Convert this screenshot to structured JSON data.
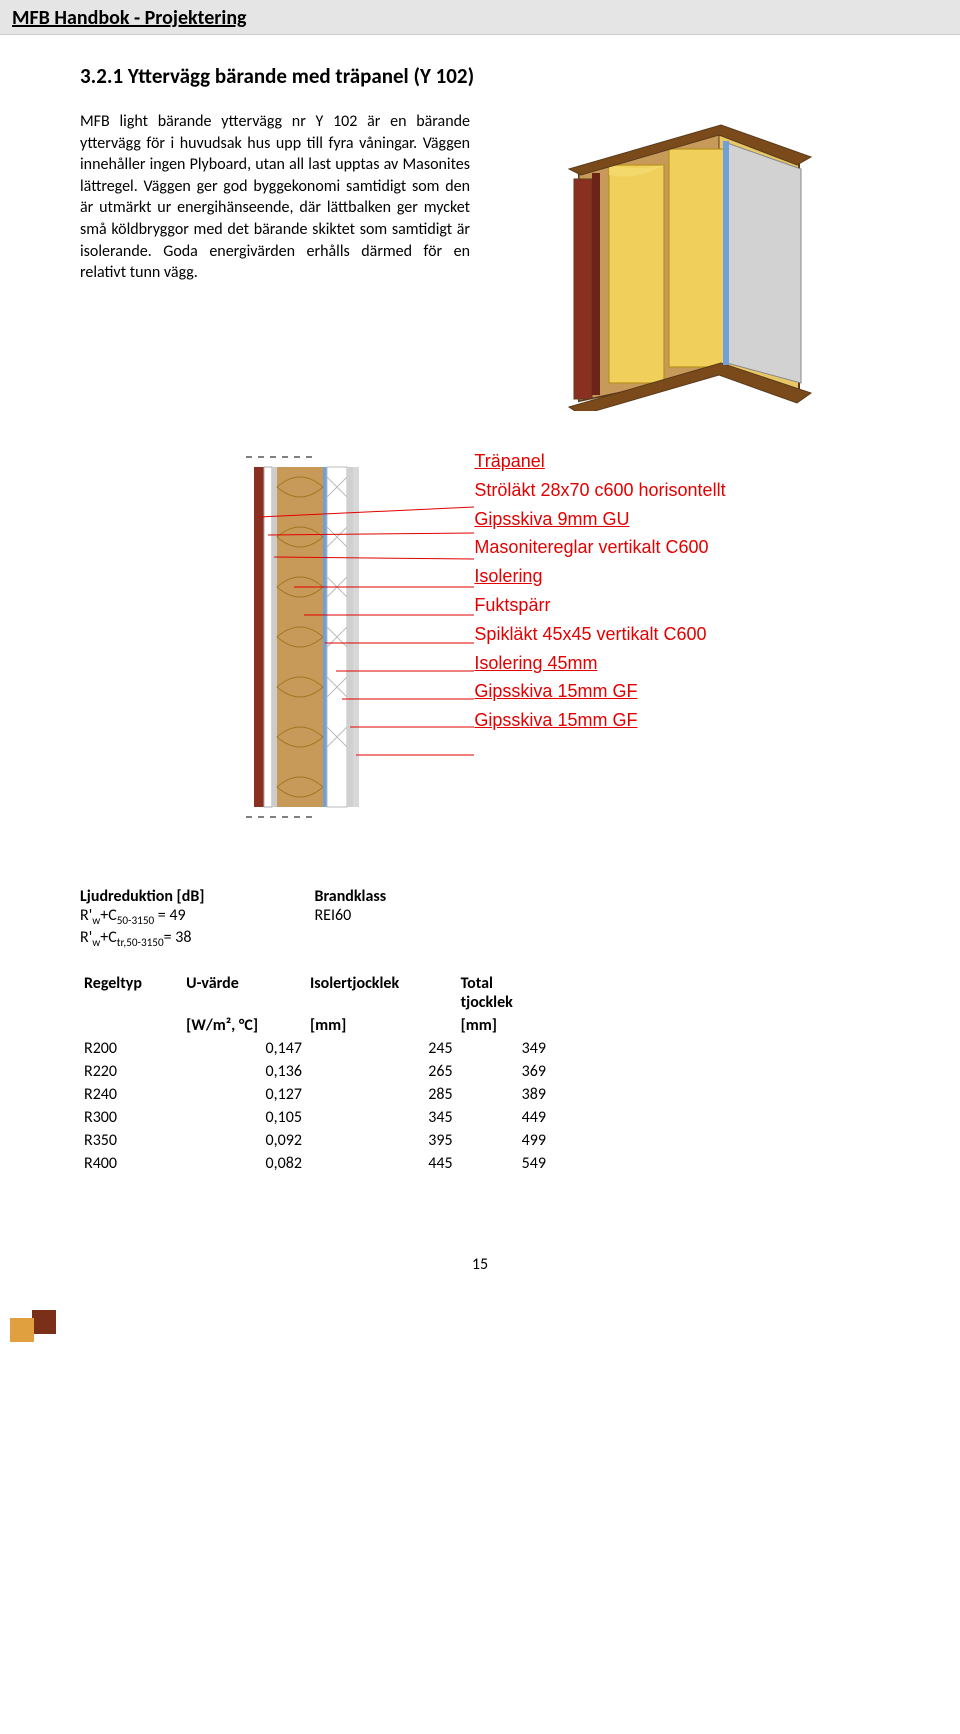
{
  "header": {
    "title": "MFB Handbok - Projektering"
  },
  "section": {
    "number": "3.2.1",
    "title": "Yttervägg bärande med träpanel (Y 102)"
  },
  "body_text": "MFB light bärande yttervägg nr Y 102 är en bärande yttervägg för i huvudsak hus upp till fyra våningar. Väggen innehåller ingen Plyboard, utan all last upptas av Masonites lättregel. Väggen ger god byggekonomi samtidigt som den är utmärkt ur energihänseende, där lättbalken ger mycket små köldbryggor med det bärande skiktet som samtidigt är isolerande. Goda energivärden erhålls därmed för en relativt tunn vägg.",
  "figure1": {
    "colors": {
      "border": "#5a3a1a",
      "wood": "#c89a5a",
      "panel": "#8a3020",
      "insulation": "#e8c766",
      "gypsum": "#c8c8c8",
      "bluefilm": "#6fa0d8"
    }
  },
  "figure2": {
    "label_color": "#e20000",
    "layers": [
      {
        "text": "Träpanel",
        "underline": true
      },
      {
        "text": "Ströläkt 28x70 c600 horisontellt",
        "underline": false
      },
      {
        "text": "Gipsskiva 9mm GU",
        "underline": true
      },
      {
        "text": "Masonitereglar vertikalt C600",
        "underline": false
      },
      {
        "text": "Isolering",
        "underline": true
      },
      {
        "text": "Fuktspärr",
        "underline": false
      },
      {
        "text": "Spikläkt 45x45 vertikalt C600",
        "underline": false
      },
      {
        "text": "Isolering  45mm",
        "underline": true
      },
      {
        "text": "Gipsskiva 15mm GF",
        "underline": true
      },
      {
        "text": "Gipsskiva 15mm GF",
        "underline": true
      }
    ]
  },
  "acoustic": {
    "left_title": "Ljudreduktion [dB]",
    "right_title": "Brandklass",
    "row1_left": "R'w+C50-3150 = 49",
    "row1_right": "REI60",
    "row2_left": "R'w+Ctr,50-3150= 38"
  },
  "table": {
    "headers": {
      "c1": "Regeltyp",
      "c2": "U-värde",
      "c3": "Isolertjocklek",
      "c4": "Total tjocklek",
      "unit2": "[W/m², °C]",
      "unit3": "[mm]",
      "unit4": "[mm]"
    },
    "rows": [
      {
        "type": "R200",
        "u": "0,147",
        "iso": "245",
        "total": "349"
      },
      {
        "type": "R220",
        "u": "0,136",
        "iso": "265",
        "total": "369"
      },
      {
        "type": "R240",
        "u": "0,127",
        "iso": "285",
        "total": "389"
      },
      {
        "type": "R300",
        "u": "0,105",
        "iso": "345",
        "total": "449"
      },
      {
        "type": "R350",
        "u": "0,092",
        "iso": "395",
        "total": "499"
      },
      {
        "type": "R400",
        "u": "0,082",
        "iso": "445",
        "total": "549"
      }
    ]
  },
  "page": {
    "number": "15"
  },
  "footer_colors": {
    "sq1": "#e0a040",
    "sq2": "#7a3018"
  }
}
